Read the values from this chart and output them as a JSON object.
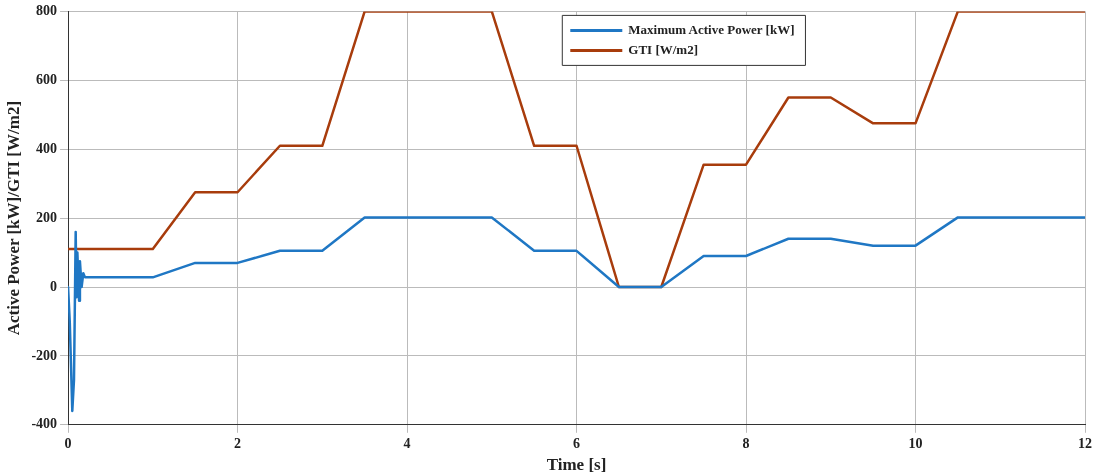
{
  "chart_data": {
    "type": "line",
    "xlabel": "Time [s]",
    "ylabel": "Active Power [kW]/GTI [W/m2]",
    "xlim": [
      0,
      12
    ],
    "xticks": [
      0,
      2,
      4,
      6,
      8,
      10,
      12
    ],
    "ylim": [
      -400,
      800
    ],
    "yticks": [
      -400,
      -200,
      0,
      200,
      400,
      600,
      800
    ],
    "grid": true,
    "legend": "top right",
    "marker": "none",
    "line_style": "solid",
    "series": [
      {
        "name": "Maximum Active Power [kW]",
        "color": "#1f77c4",
        "x": [
          0,
          0.02,
          0.05,
          0.07,
          0.09,
          0.1,
          0.11,
          0.13,
          0.14,
          0.16,
          0.18,
          0.2,
          1,
          1.5,
          2,
          2.5,
          3,
          3.5,
          5,
          5.5,
          6,
          6.5,
          7,
          7.5,
          8,
          8.5,
          9,
          9.5,
          10,
          10.5,
          12
        ],
        "values": [
          0,
          -100,
          -360,
          -270,
          160,
          -30,
          100,
          -40,
          75,
          0,
          40,
          28,
          28,
          70,
          70,
          105,
          105,
          202,
          202,
          105,
          105,
          0,
          0,
          90,
          90,
          140,
          140,
          120,
          120,
          202,
          202
        ]
      },
      {
        "name": "GTI [W/m2]",
        "color": "#a83c0c",
        "x": [
          0,
          1,
          1.5,
          2,
          2.5,
          3,
          3.5,
          5,
          5.5,
          6,
          6.5,
          7,
          7.5,
          8,
          8.5,
          9,
          9.5,
          10,
          10.5,
          12
        ],
        "values": [
          110,
          110,
          275,
          275,
          410,
          410,
          800,
          800,
          410,
          410,
          0,
          0,
          355,
          355,
          550,
          550,
          475,
          475,
          800,
          800
        ]
      }
    ]
  }
}
